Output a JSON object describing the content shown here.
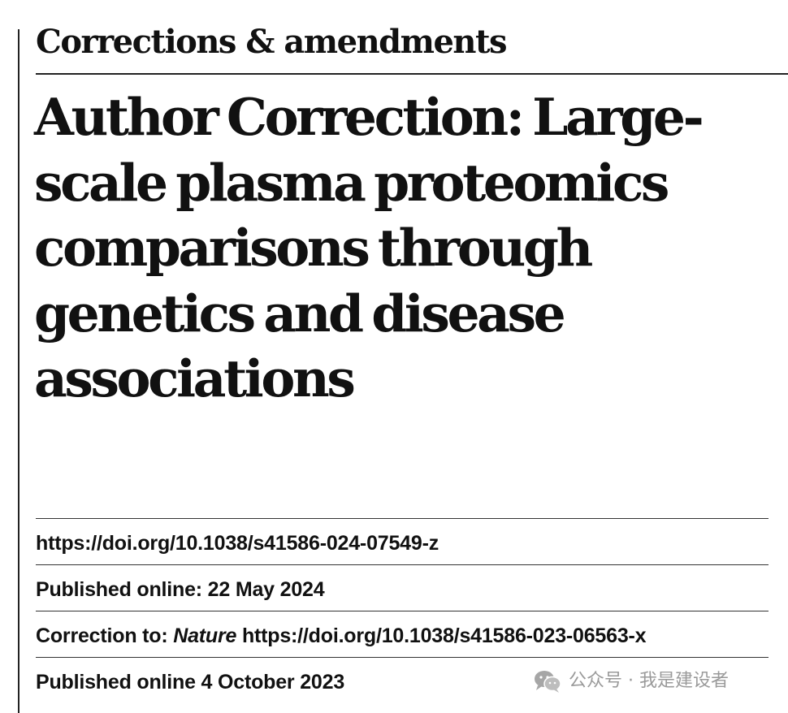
{
  "section_header": "Corrections & amendments",
  "title": "Author Correction: Large-scale plasma proteomics comparisons through genetics and disease associations",
  "doi": "https://doi.org/10.1038/s41586-024-07549-z",
  "published_online": "Published online: 22 May 2024",
  "correction_to": {
    "prefix": "Correction to: ",
    "journal": "Nature",
    "link": " https://doi.org/10.1038/s41586-023-06563-x"
  },
  "original_published": "Published online 4 October 2023",
  "watermark": {
    "icon": "wechat-icon",
    "text": "公众号 · 我是建设者"
  }
}
